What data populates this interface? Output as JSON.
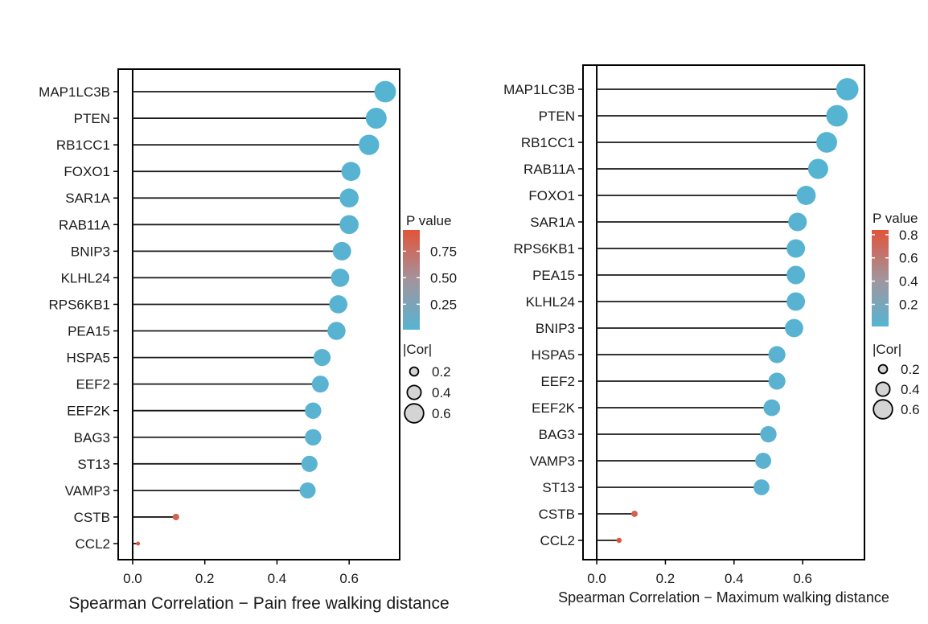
{
  "chart_data": [
    {
      "type": "lollipop",
      "categories": [
        "MAP1LC3B",
        "PTEN",
        "RB1CC1",
        "FOXO1",
        "SAR1A",
        "RAB11A",
        "BNIP3",
        "KLHL24",
        "RPS6KB1",
        "PEA15",
        "HSPA5",
        "EEF2",
        "EEF2K",
        "BAG3",
        "ST13",
        "VAMP3",
        "CSTB",
        "CCL2"
      ],
      "values": [
        0.7,
        0.675,
        0.655,
        0.605,
        0.6,
        0.6,
        0.58,
        0.575,
        0.57,
        0.565,
        0.525,
        0.52,
        0.5,
        0.5,
        0.49,
        0.485,
        0.12,
        0.015
      ],
      "pvalues": [
        0.01,
        0.01,
        0.01,
        0.02,
        0.02,
        0.02,
        0.02,
        0.02,
        0.02,
        0.02,
        0.03,
        0.03,
        0.03,
        0.03,
        0.03,
        0.03,
        0.82,
        0.95
      ],
      "xlabel": "Spearman Correlation − Pain free walking distance",
      "xlim": [
        -0.04,
        0.74
      ],
      "xticks": [
        "0.0",
        "0.2",
        "0.4",
        "0.6"
      ],
      "xtick_values": [
        0.0,
        0.2,
        0.4,
        0.6
      ],
      "color_legend_title": "P value",
      "color_range": [
        0.01,
        0.95
      ],
      "color_ticks": [
        "0.75",
        "0.50",
        "0.25"
      ],
      "color_tick_values": [
        0.75,
        0.5,
        0.25
      ],
      "size_legend_title": "|Cor|",
      "size_ticks": [
        "0.2",
        "0.4",
        "0.6"
      ],
      "size_tick_values": [
        0.2,
        0.4,
        0.6
      ]
    },
    {
      "type": "lollipop",
      "categories": [
        "MAP1LC3B",
        "PTEN",
        "RB1CC1",
        "RAB11A",
        "FOXO1",
        "SAR1A",
        "RPS6KB1",
        "PEA15",
        "KLHL24",
        "BNIP3",
        "HSPA5",
        "EEF2",
        "EEF2K",
        "BAG3",
        "VAMP3",
        "ST13",
        "CSTB",
        "CCL2"
      ],
      "values": [
        0.73,
        0.7,
        0.67,
        0.645,
        0.61,
        0.585,
        0.58,
        0.58,
        0.58,
        0.575,
        0.525,
        0.525,
        0.51,
        0.5,
        0.485,
        0.48,
        0.11,
        0.065
      ],
      "pvalues": [
        0.01,
        0.01,
        0.01,
        0.01,
        0.02,
        0.02,
        0.02,
        0.02,
        0.02,
        0.02,
        0.03,
        0.03,
        0.03,
        0.03,
        0.03,
        0.03,
        0.75,
        0.84
      ],
      "xlabel": "Spearman Correlation − Maximum walking distance",
      "xlim": [
        -0.04,
        0.78
      ],
      "xticks": [
        "0.0",
        "0.2",
        "0.4",
        "0.6"
      ],
      "xtick_values": [
        0.0,
        0.2,
        0.4,
        0.6
      ],
      "color_legend_title": "P value",
      "color_range": [
        0.01,
        0.84
      ],
      "color_ticks": [
        "0.8",
        "0.6",
        "0.4",
        "0.2"
      ],
      "color_tick_values": [
        0.8,
        0.6,
        0.4,
        0.2
      ],
      "size_legend_title": "|Cor|",
      "size_ticks": [
        "0.2",
        "0.4",
        "0.6"
      ],
      "size_tick_values": [
        0.2,
        0.4,
        0.6
      ]
    }
  ],
  "colors": {
    "low_p": "#56b4d3",
    "high_p": "#e2533a",
    "line": "#1a1a1a",
    "size_key_fill": "#d4d4d4"
  }
}
